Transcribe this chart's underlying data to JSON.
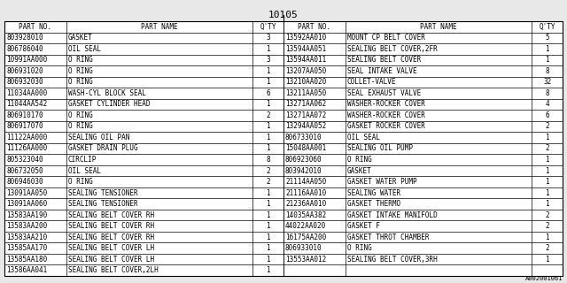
{
  "title": "10105",
  "watermark": "A002001061",
  "headers": [
    "PART NO.",
    "PART NAME",
    "Q'TY",
    "PART NO.",
    "PART NAME",
    "Q'TY"
  ],
  "left_rows": [
    [
      "803928010",
      "GASKET",
      "3"
    ],
    [
      "806786040",
      "OIL SEAL",
      "1"
    ],
    [
      "10991AA000",
      "O RING",
      "3"
    ],
    [
      "806931020",
      "O RING",
      "1"
    ],
    [
      "806932030",
      "O RING",
      "1"
    ],
    [
      "11034AA000",
      "WASH-CYL BLOCK SEAL",
      "6"
    ],
    [
      "11044AA542",
      "GASKET CYLINDER HEAD",
      "1"
    ],
    [
      "806910170",
      "O RING",
      "2"
    ],
    [
      "806917070",
      "O RING",
      "1"
    ],
    [
      "11122AA000",
      "SEALING OIL PAN",
      "1"
    ],
    [
      "11126AA000",
      "GASKET DRAIN PLUG",
      "1"
    ],
    [
      "805323040",
      "CIRCLIP",
      "8"
    ],
    [
      "806732050",
      "OIL SEAL",
      "2"
    ],
    [
      "806946030",
      "O RING",
      "2"
    ],
    [
      "13091AA050",
      "SEALING TENSIONER",
      "1"
    ],
    [
      "13091AA060",
      "SEALING TENSIONER",
      "1"
    ],
    [
      "13583AA190",
      "SEALING BELT COVER RH",
      "1"
    ],
    [
      "13583AA200",
      "SEALING BELT COVER RH",
      "1"
    ],
    [
      "13583AA210",
      "SEALING BELT COVER RH",
      "1"
    ],
    [
      "13585AA170",
      "SEALING BELT COVER LH",
      "1"
    ],
    [
      "13585AA180",
      "SEALING BELT COVER LH",
      "1"
    ],
    [
      "13586AA041",
      "SEALING BELT COVER,2LH",
      "1"
    ]
  ],
  "right_rows": [
    [
      "13592AA010",
      "MOUNT CP BELT COVER",
      "5"
    ],
    [
      "13594AA051",
      "SEALING BELT COVER,2FR",
      "1"
    ],
    [
      "13594AA011",
      "SEALING BELT COVER",
      "1"
    ],
    [
      "13207AA050",
      "SEAL INTAKE VALVE",
      "8"
    ],
    [
      "13210AA020",
      "COLLET-VALVE",
      "32"
    ],
    [
      "13211AA050",
      "SEAL EXHAUST VALVE",
      "8"
    ],
    [
      "13271AA062",
      "WASHER-ROCKER COVER",
      "4"
    ],
    [
      "13271AA072",
      "WASHER-ROCKER COVER",
      "6"
    ],
    [
      "13294AA052",
      "GASKET ROCKER COVER",
      "2"
    ],
    [
      "806733010",
      "OIL SEAL",
      "1"
    ],
    [
      "15048AA001",
      "SEALING OIL PUMP",
      "2"
    ],
    [
      "806923060",
      "O RING",
      "1"
    ],
    [
      "803942010",
      "GASKET",
      "1"
    ],
    [
      "21114AA050",
      "GASKET WATER PUMP",
      "1"
    ],
    [
      "21116AA010",
      "SEALING WATER",
      "1"
    ],
    [
      "21236AA010",
      "GASKET THERMO",
      "1"
    ],
    [
      "14035AA382",
      "GASKET INTAKE MANIFOLD",
      "2"
    ],
    [
      "44022AA020",
      "GASKET F",
      "2"
    ],
    [
      "16175AA200",
      "GASKET THROT CHAMBER",
      "1"
    ],
    [
      "806933010",
      "O RING",
      "2"
    ],
    [
      "13553AA012",
      "SEALING BELT COVER,3RH",
      "1"
    ],
    [
      "",
      "",
      ""
    ]
  ],
  "bg_color": "#e8e8e8",
  "font_size": 5.5,
  "title_font_size": 8.0,
  "watermark_font_size": 5.0
}
